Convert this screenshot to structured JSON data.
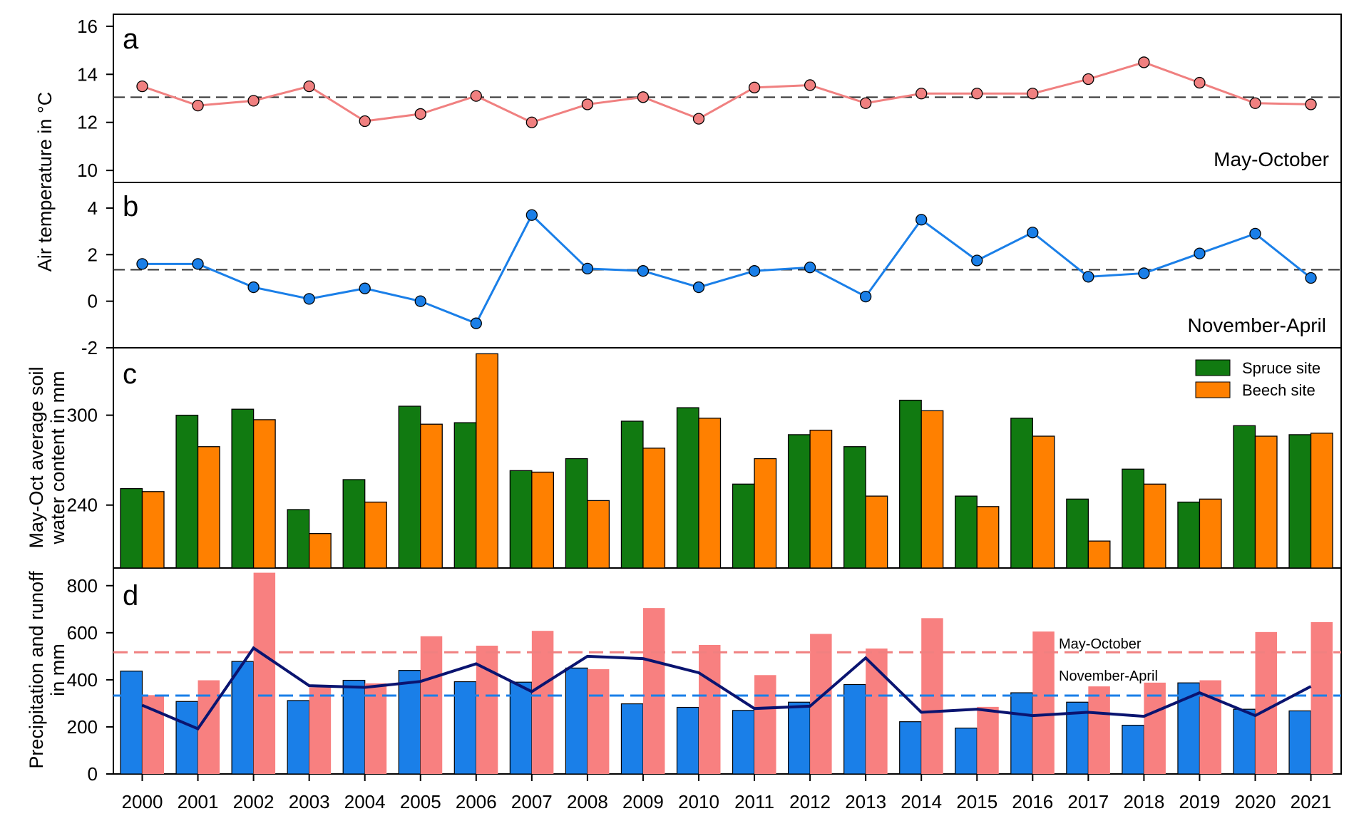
{
  "chart_data": [
    {
      "panel": "a",
      "type": "line",
      "annotation": "May-October",
      "ylabel": "Air temperature in °C",
      "ylim": [
        9.5,
        16.5
      ],
      "yticks": [
        10,
        12,
        14,
        16
      ],
      "reference_line": 13.05,
      "color": "#f08080",
      "x": [
        2000,
        2001,
        2002,
        2003,
        2004,
        2005,
        2006,
        2007,
        2008,
        2009,
        2010,
        2011,
        2012,
        2013,
        2014,
        2015,
        2016,
        2017,
        2018,
        2019,
        2020,
        2021
      ],
      "values": [
        13.5,
        12.7,
        12.9,
        13.5,
        12.05,
        12.35,
        13.1,
        12.0,
        12.75,
        13.05,
        12.15,
        13.45,
        13.55,
        12.8,
        13.2,
        13.2,
        13.2,
        13.8,
        14.5,
        13.65,
        12.8,
        12.75
      ]
    },
    {
      "panel": "b",
      "type": "line",
      "annotation": "November-April",
      "ylim": [
        -2,
        5.1
      ],
      "yticks": [
        -2,
        0,
        2,
        4
      ],
      "reference_line": 1.35,
      "color": "#1a7fe8",
      "x": [
        2000,
        2001,
        2002,
        2003,
        2004,
        2005,
        2006,
        2007,
        2008,
        2009,
        2010,
        2011,
        2012,
        2013,
        2014,
        2015,
        2016,
        2017,
        2018,
        2019,
        2020,
        2021
      ],
      "values": [
        1.6,
        1.6,
        0.6,
        0.1,
        0.55,
        0.0,
        -0.95,
        3.7,
        1.4,
        1.3,
        0.6,
        1.3,
        1.45,
        0.2,
        3.5,
        1.75,
        2.95,
        1.05,
        1.2,
        2.05,
        2.9,
        1.0
      ]
    },
    {
      "panel": "c",
      "type": "bar",
      "ylabel": "May-Oct average soil water content in mm",
      "ylim": [
        198,
        345
      ],
      "yticks": [
        240,
        300
      ],
      "legend": "top-right",
      "categories": [
        "2000",
        "2001",
        "2002",
        "2003",
        "2004",
        "2005",
        "2006",
        "2007",
        "2008",
        "2009",
        "2010",
        "2011",
        "2012",
        "2013",
        "2014",
        "2015",
        "2016",
        "2017",
        "2018",
        "2019",
        "2020",
        "2021"
      ],
      "series": [
        {
          "name": "Spruce site",
          "color": "#117a11",
          "values": [
            251,
            300,
            304,
            237,
            257,
            306,
            295,
            263,
            271,
            296,
            305,
            254,
            287,
            279,
            310,
            246,
            298,
            244,
            264,
            242,
            293,
            287
          ]
        },
        {
          "name": "Beech site",
          "color": "#ff8000",
          "values": [
            249,
            279,
            297,
            221,
            242,
            294,
            341,
            262,
            243,
            278,
            298,
            271,
            290,
            246,
            303,
            239,
            286,
            216,
            254,
            244,
            286,
            288
          ]
        }
      ]
    },
    {
      "panel": "d",
      "type": "bar",
      "ylabel": "Precipitation and runoff in mm",
      "ylim": [
        0,
        875
      ],
      "yticks": [
        0,
        200,
        400,
        600,
        800
      ],
      "categories": [
        "2000",
        "2001",
        "2002",
        "2003",
        "2004",
        "2005",
        "2006",
        "2007",
        "2008",
        "2009",
        "2010",
        "2011",
        "2012",
        "2013",
        "2014",
        "2015",
        "2016",
        "2017",
        "2018",
        "2019",
        "2020",
        "2021"
      ],
      "series": [
        {
          "color": "#1a7fe8",
          "values": [
            437,
            308,
            478,
            312,
            398,
            440,
            392,
            390,
            450,
            298,
            283,
            270,
            305,
            380,
            222,
            195,
            345,
            305,
            207,
            387,
            275,
            268
          ]
        },
        {
          "color": "#f88080",
          "values": [
            335,
            398,
            855,
            368,
            385,
            585,
            545,
            608,
            445,
            705,
            548,
            420,
            595,
            533,
            662,
            285,
            605,
            372,
            388,
            398,
            603,
            645
          ]
        }
      ],
      "line": {
        "color": "#0a1470",
        "values": [
          292,
          192,
          535,
          375,
          368,
          393,
          468,
          350,
          500,
          490,
          430,
          278,
          288,
          493,
          262,
          275,
          248,
          262,
          245,
          345,
          248,
          372
        ]
      },
      "reference_lines": [
        {
          "label": "May-October",
          "value": 517,
          "color": "#f08080"
        },
        {
          "label": "November-April",
          "value": 333,
          "color": "#1a7fe8"
        }
      ]
    }
  ],
  "x_tick_labels": [
    "2000",
    "2001",
    "2002",
    "2003",
    "2004",
    "2005",
    "2006",
    "2007",
    "2008",
    "2009",
    "2010",
    "2011",
    "2012",
    "2013",
    "2014",
    "2015",
    "2016",
    "2017",
    "2018",
    "2019",
    "2020",
    "2021"
  ]
}
